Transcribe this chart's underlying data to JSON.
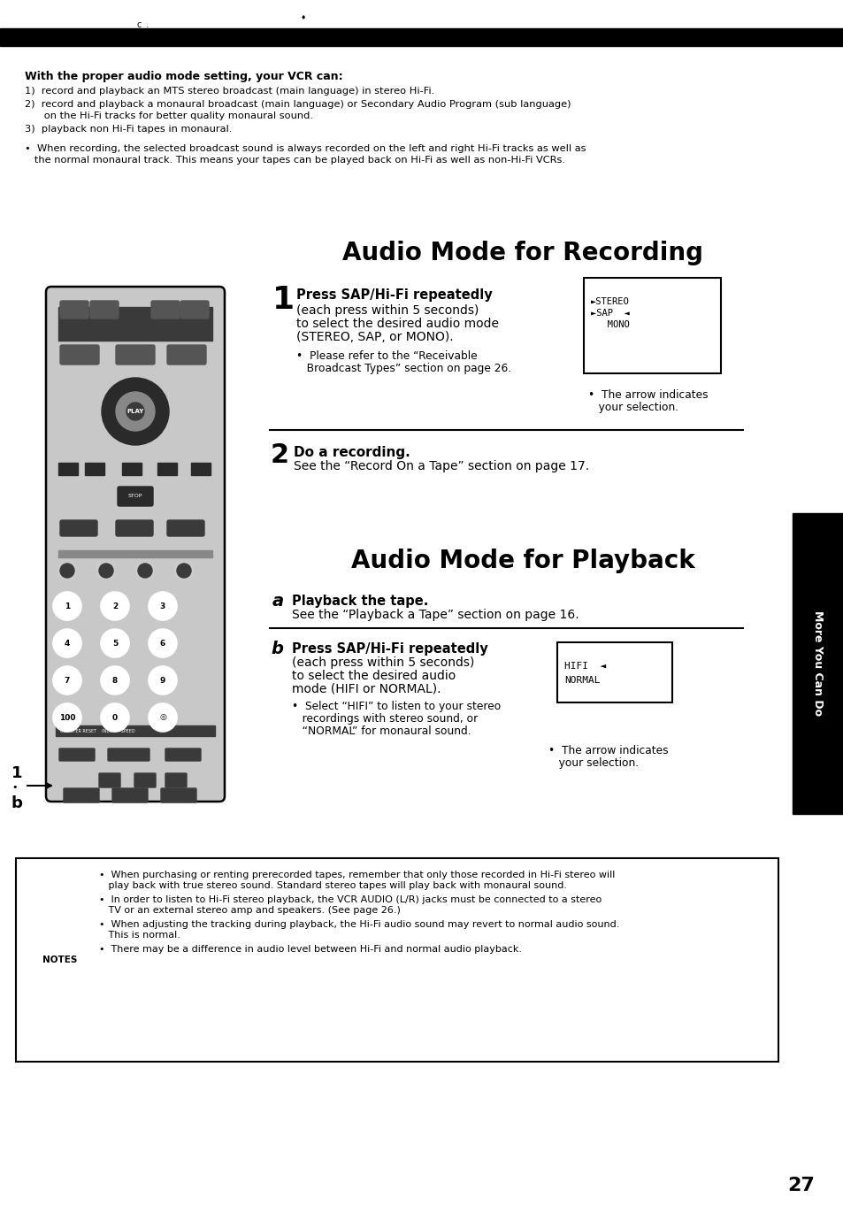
{
  "bg_color": "#ffffff",
  "page_number": "27",
  "intro_title": "With the proper audio mode setting, your VCR can:",
  "intro_items": [
    "1)  record and playback an MTS stereo broadcast (main language) in stereo Hi-Fi.",
    "2)  record and playback a monaural broadcast (main language) or Secondary Audio Program (sub language)\n      on the Hi-Fi tracks for better quality monaural sound.",
    "3)  playback non Hi-Fi tapes in monaural."
  ],
  "intro_bullet": "•  When recording, the selected broadcast sound is always recorded on the left and right Hi-Fi tracks as well as\n   the normal monaural track. This means your tapes can be played back on Hi-Fi as well as non-Hi-Fi VCRs.",
  "section1_title": "Audio Mode for Recording",
  "step1_num": "1",
  "step1_bold": "Press SAP/Hi-Fi repeatedly",
  "step1_text": "(each press within 5 seconds)\nto select the desired audio mode\n(STEREO, SAP, or MONO).",
  "step1_bullet": "•  Please refer to the “Receivable\n   Broadcast Types” section on page 26.",
  "step1_box_lines": [
    "►STEREO",
    "►SAP  ◄",
    "   MONO"
  ],
  "step1_arrow_note": "•  The arrow indicates\n   your selection.",
  "step2_num": "2",
  "step2_bold": "Do a recording.",
  "step2_text": "See the “Record On a Tape” section on page 17.",
  "section2_title": "Audio Mode for Playback",
  "stepa_num": "a",
  "stepa_bold": "Playback the tape.",
  "stepa_text": "See the “Playback a Tape” section on page 16.",
  "stepb_num": "b",
  "stepb_bold": "Press SAP/Hi-Fi repeatedly",
  "stepb_text": "(each press within 5 seconds)\nto select the desired audio\nmode (HIFI or NORMAL).",
  "stepb_bullet": "•  Select “HIFI” to listen to your stereo\n   recordings with stereo sound, or\n   “NORMAL” for monaural sound.",
  "stepb_box_lines": [
    "HIFI  ◄",
    "NORMAL"
  ],
  "stepb_arrow_note": "•  The arrow indicates\n   your selection.",
  "notes_bullets": [
    "•  When purchasing or renting prerecorded tapes, remember that only those recorded in Hi-Fi stereo will\n   play back with true stereo sound. Standard stereo tapes will play back with monaural sound.",
    "•  In order to listen to Hi-Fi stereo playback, the VCR AUDIO (L/R) jacks must be connected to a stereo\n   TV or an external stereo amp and speakers. (See page 26.)",
    "•  When adjusting the tracking during playback, the Hi-Fi audio sound may revert to normal audio sound.\n   This is normal.",
    "•  There may be a difference in audio level between Hi-Fi and normal audio playback."
  ],
  "sidebar_text": "More You Can Do",
  "label_1": "1",
  "label_b": "b"
}
